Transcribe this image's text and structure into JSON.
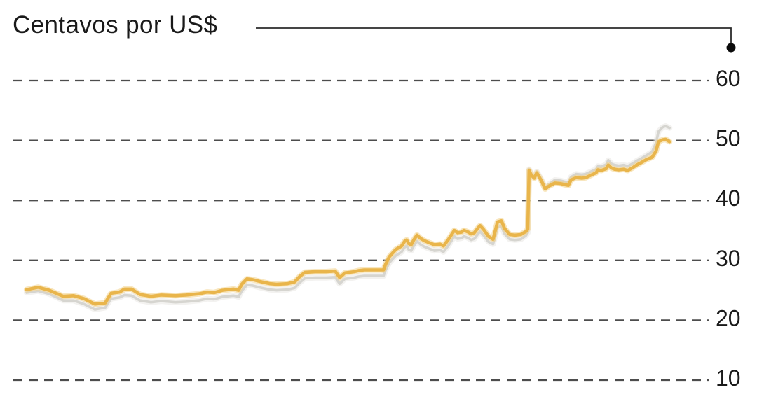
{
  "header": {
    "title": "Centavos por US$"
  },
  "colors": {
    "background": "#FFFFFF",
    "text": "#1A1A1A",
    "gridline": "#4D4D4D",
    "leader_line": "#2B2B2B",
    "callout_dot": "#0B0B0B",
    "yellow_line": "#E9B54B",
    "yellow_halo": "#F3D189",
    "gray_line": "#D6D5D0",
    "gray_halo": "#E9E8E4"
  },
  "chart_data": {
    "type": "line",
    "title": "Centavos por US$",
    "xlabel": "",
    "ylabel": "",
    "legend": "none",
    "grid": "dashed-horizontal",
    "x_axis": {
      "tick_labels": [],
      "encoding": "fraction_of_plot_width_0_to_1"
    },
    "y_axis": {
      "side": "right",
      "ticks": [
        60,
        50,
        40,
        30,
        20,
        10
      ],
      "ylim": [
        5,
        63
      ]
    },
    "series": [
      {
        "name": "gray",
        "color": "#D6D5D0",
        "halo_color": "#E9E8E4",
        "points": [
          [
            0.0,
            24.6
          ],
          [
            0.018,
            24.9
          ],
          [
            0.035,
            24.4
          ],
          [
            0.057,
            23.3
          ],
          [
            0.073,
            23.3
          ],
          [
            0.089,
            22.7
          ],
          [
            0.106,
            21.8
          ],
          [
            0.122,
            22.1
          ],
          [
            0.131,
            23.6
          ],
          [
            0.144,
            23.8
          ],
          [
            0.152,
            24.2
          ],
          [
            0.163,
            24.1
          ],
          [
            0.176,
            23.3
          ],
          [
            0.193,
            23.0
          ],
          [
            0.209,
            23.2
          ],
          [
            0.231,
            23.0
          ],
          [
            0.247,
            23.1
          ],
          [
            0.267,
            23.3
          ],
          [
            0.28,
            23.6
          ],
          [
            0.291,
            23.5
          ],
          [
            0.304,
            23.9
          ],
          [
            0.321,
            24.1
          ],
          [
            0.329,
            23.9
          ],
          [
            0.334,
            24.9
          ],
          [
            0.342,
            25.9
          ],
          [
            0.35,
            25.8
          ],
          [
            0.365,
            25.4
          ],
          [
            0.378,
            25.1
          ],
          [
            0.388,
            25.0
          ],
          [
            0.405,
            25.1
          ],
          [
            0.416,
            25.4
          ],
          [
            0.424,
            26.3
          ],
          [
            0.432,
            27.0
          ],
          [
            0.448,
            27.1
          ],
          [
            0.465,
            27.1
          ],
          [
            0.479,
            27.2
          ],
          [
            0.486,
            26.1
          ],
          [
            0.494,
            26.9
          ],
          [
            0.508,
            27.1
          ],
          [
            0.516,
            27.3
          ],
          [
            0.524,
            27.4
          ],
          [
            0.541,
            27.4
          ],
          [
            0.554,
            27.4
          ],
          [
            0.557,
            28.3
          ],
          [
            0.563,
            29.6
          ],
          [
            0.568,
            30.2
          ],
          [
            0.573,
            30.8
          ],
          [
            0.579,
            31.2
          ],
          [
            0.582,
            31.4
          ],
          [
            0.587,
            32.2
          ],
          [
            0.59,
            32.4
          ],
          [
            0.593,
            31.8
          ],
          [
            0.597,
            31.6
          ],
          [
            0.601,
            32.4
          ],
          [
            0.606,
            33.2
          ],
          [
            0.611,
            32.7
          ],
          [
            0.617,
            32.3
          ],
          [
            0.626,
            31.9
          ],
          [
            0.633,
            31.6
          ],
          [
            0.642,
            31.7
          ],
          [
            0.647,
            31.4
          ],
          [
            0.655,
            32.5
          ],
          [
            0.664,
            34.0
          ],
          [
            0.669,
            33.6
          ],
          [
            0.675,
            33.7
          ],
          [
            0.679,
            34.0
          ],
          [
            0.686,
            33.7
          ],
          [
            0.69,
            33.4
          ],
          [
            0.695,
            33.6
          ],
          [
            0.7,
            34.3
          ],
          [
            0.704,
            34.8
          ],
          [
            0.709,
            34.2
          ],
          [
            0.717,
            33.1
          ],
          [
            0.724,
            32.7
          ],
          [
            0.731,
            35.5
          ],
          [
            0.737,
            35.7
          ],
          [
            0.742,
            34.4
          ],
          [
            0.75,
            33.5
          ],
          [
            0.758,
            33.4
          ],
          [
            0.767,
            33.5
          ],
          [
            0.775,
            34.1
          ],
          [
            0.778,
            34.6
          ],
          [
            0.78,
            45.2
          ],
          [
            0.783,
            44.5
          ],
          [
            0.788,
            43.9
          ],
          [
            0.792,
            44.8
          ],
          [
            0.799,
            43.5
          ],
          [
            0.805,
            42.1
          ],
          [
            0.811,
            42.7
          ],
          [
            0.82,
            43.4
          ],
          [
            0.829,
            43.3
          ],
          [
            0.836,
            43.1
          ],
          [
            0.841,
            43.0
          ],
          [
            0.845,
            43.9
          ],
          [
            0.853,
            44.4
          ],
          [
            0.862,
            44.3
          ],
          [
            0.868,
            44.4
          ],
          [
            0.876,
            44.8
          ],
          [
            0.884,
            45.2
          ],
          [
            0.887,
            45.7
          ],
          [
            0.892,
            45.6
          ],
          [
            0.9,
            46.0
          ],
          [
            0.903,
            46.7
          ],
          [
            0.908,
            46.1
          ],
          [
            0.913,
            45.9
          ],
          [
            0.919,
            45.8
          ],
          [
            0.927,
            45.9
          ],
          [
            0.933,
            45.7
          ],
          [
            0.94,
            46.1
          ],
          [
            0.947,
            46.6
          ],
          [
            0.954,
            47.0
          ],
          [
            0.962,
            47.5
          ],
          [
            0.971,
            48.1
          ],
          [
            0.977,
            49.6
          ],
          [
            0.981,
            51.5
          ],
          [
            0.987,
            52.2
          ],
          [
            0.992,
            52.4
          ],
          [
            0.998,
            52.1
          ]
        ]
      },
      {
        "name": "yellow",
        "color": "#E9B54B",
        "halo_color": "#F3D189",
        "points": [
          [
            0.0,
            25.1
          ],
          [
            0.018,
            25.5
          ],
          [
            0.035,
            25.0
          ],
          [
            0.057,
            24.0
          ],
          [
            0.073,
            24.1
          ],
          [
            0.089,
            23.6
          ],
          [
            0.106,
            22.7
          ],
          [
            0.122,
            22.9
          ],
          [
            0.131,
            24.5
          ],
          [
            0.144,
            24.7
          ],
          [
            0.152,
            25.2
          ],
          [
            0.163,
            25.2
          ],
          [
            0.176,
            24.3
          ],
          [
            0.193,
            24.0
          ],
          [
            0.209,
            24.2
          ],
          [
            0.231,
            24.1
          ],
          [
            0.247,
            24.2
          ],
          [
            0.267,
            24.4
          ],
          [
            0.28,
            24.7
          ],
          [
            0.291,
            24.6
          ],
          [
            0.304,
            25.0
          ],
          [
            0.321,
            25.2
          ],
          [
            0.329,
            25.0
          ],
          [
            0.334,
            26.0
          ],
          [
            0.342,
            26.9
          ],
          [
            0.35,
            26.8
          ],
          [
            0.365,
            26.4
          ],
          [
            0.378,
            26.1
          ],
          [
            0.388,
            26.0
          ],
          [
            0.405,
            26.1
          ],
          [
            0.416,
            26.4
          ],
          [
            0.424,
            27.3
          ],
          [
            0.432,
            28.0
          ],
          [
            0.448,
            28.1
          ],
          [
            0.465,
            28.1
          ],
          [
            0.479,
            28.2
          ],
          [
            0.486,
            27.1
          ],
          [
            0.494,
            27.9
          ],
          [
            0.508,
            28.1
          ],
          [
            0.516,
            28.3
          ],
          [
            0.524,
            28.4
          ],
          [
            0.541,
            28.4
          ],
          [
            0.554,
            28.4
          ],
          [
            0.557,
            29.3
          ],
          [
            0.563,
            30.6
          ],
          [
            0.568,
            31.2
          ],
          [
            0.573,
            31.8
          ],
          [
            0.579,
            32.2
          ],
          [
            0.582,
            32.4
          ],
          [
            0.587,
            33.2
          ],
          [
            0.59,
            33.4
          ],
          [
            0.593,
            32.8
          ],
          [
            0.597,
            32.6
          ],
          [
            0.601,
            33.4
          ],
          [
            0.606,
            34.2
          ],
          [
            0.611,
            33.7
          ],
          [
            0.617,
            33.3
          ],
          [
            0.626,
            32.9
          ],
          [
            0.633,
            32.6
          ],
          [
            0.642,
            32.7
          ],
          [
            0.647,
            32.4
          ],
          [
            0.655,
            33.5
          ],
          [
            0.664,
            35.0
          ],
          [
            0.669,
            34.6
          ],
          [
            0.675,
            34.7
          ],
          [
            0.679,
            35.0
          ],
          [
            0.686,
            34.7
          ],
          [
            0.69,
            34.4
          ],
          [
            0.695,
            34.6
          ],
          [
            0.7,
            35.3
          ],
          [
            0.704,
            35.8
          ],
          [
            0.709,
            35.2
          ],
          [
            0.717,
            34.0
          ],
          [
            0.724,
            33.5
          ],
          [
            0.731,
            36.4
          ],
          [
            0.737,
            36.6
          ],
          [
            0.742,
            35.3
          ],
          [
            0.75,
            34.3
          ],
          [
            0.758,
            34.2
          ],
          [
            0.767,
            34.3
          ],
          [
            0.775,
            34.8
          ],
          [
            0.778,
            35.2
          ],
          [
            0.78,
            45.0
          ],
          [
            0.783,
            44.3
          ],
          [
            0.788,
            43.7
          ],
          [
            0.792,
            44.6
          ],
          [
            0.799,
            43.3
          ],
          [
            0.805,
            41.9
          ],
          [
            0.811,
            42.4
          ],
          [
            0.82,
            42.9
          ],
          [
            0.829,
            42.8
          ],
          [
            0.836,
            42.6
          ],
          [
            0.841,
            42.5
          ],
          [
            0.845,
            43.4
          ],
          [
            0.853,
            43.8
          ],
          [
            0.862,
            43.7
          ],
          [
            0.868,
            43.8
          ],
          [
            0.876,
            44.2
          ],
          [
            0.884,
            44.6
          ],
          [
            0.887,
            45.1
          ],
          [
            0.892,
            45.0
          ],
          [
            0.9,
            45.3
          ],
          [
            0.903,
            45.9
          ],
          [
            0.908,
            45.4
          ],
          [
            0.913,
            45.2
          ],
          [
            0.919,
            45.1
          ],
          [
            0.927,
            45.2
          ],
          [
            0.933,
            45.0
          ],
          [
            0.94,
            45.4
          ],
          [
            0.947,
            45.9
          ],
          [
            0.954,
            46.3
          ],
          [
            0.962,
            46.8
          ],
          [
            0.971,
            47.2
          ],
          [
            0.977,
            48.2
          ],
          [
            0.981,
            49.8
          ],
          [
            0.987,
            50.1
          ],
          [
            0.992,
            50.2
          ],
          [
            0.998,
            49.8
          ]
        ]
      }
    ]
  }
}
